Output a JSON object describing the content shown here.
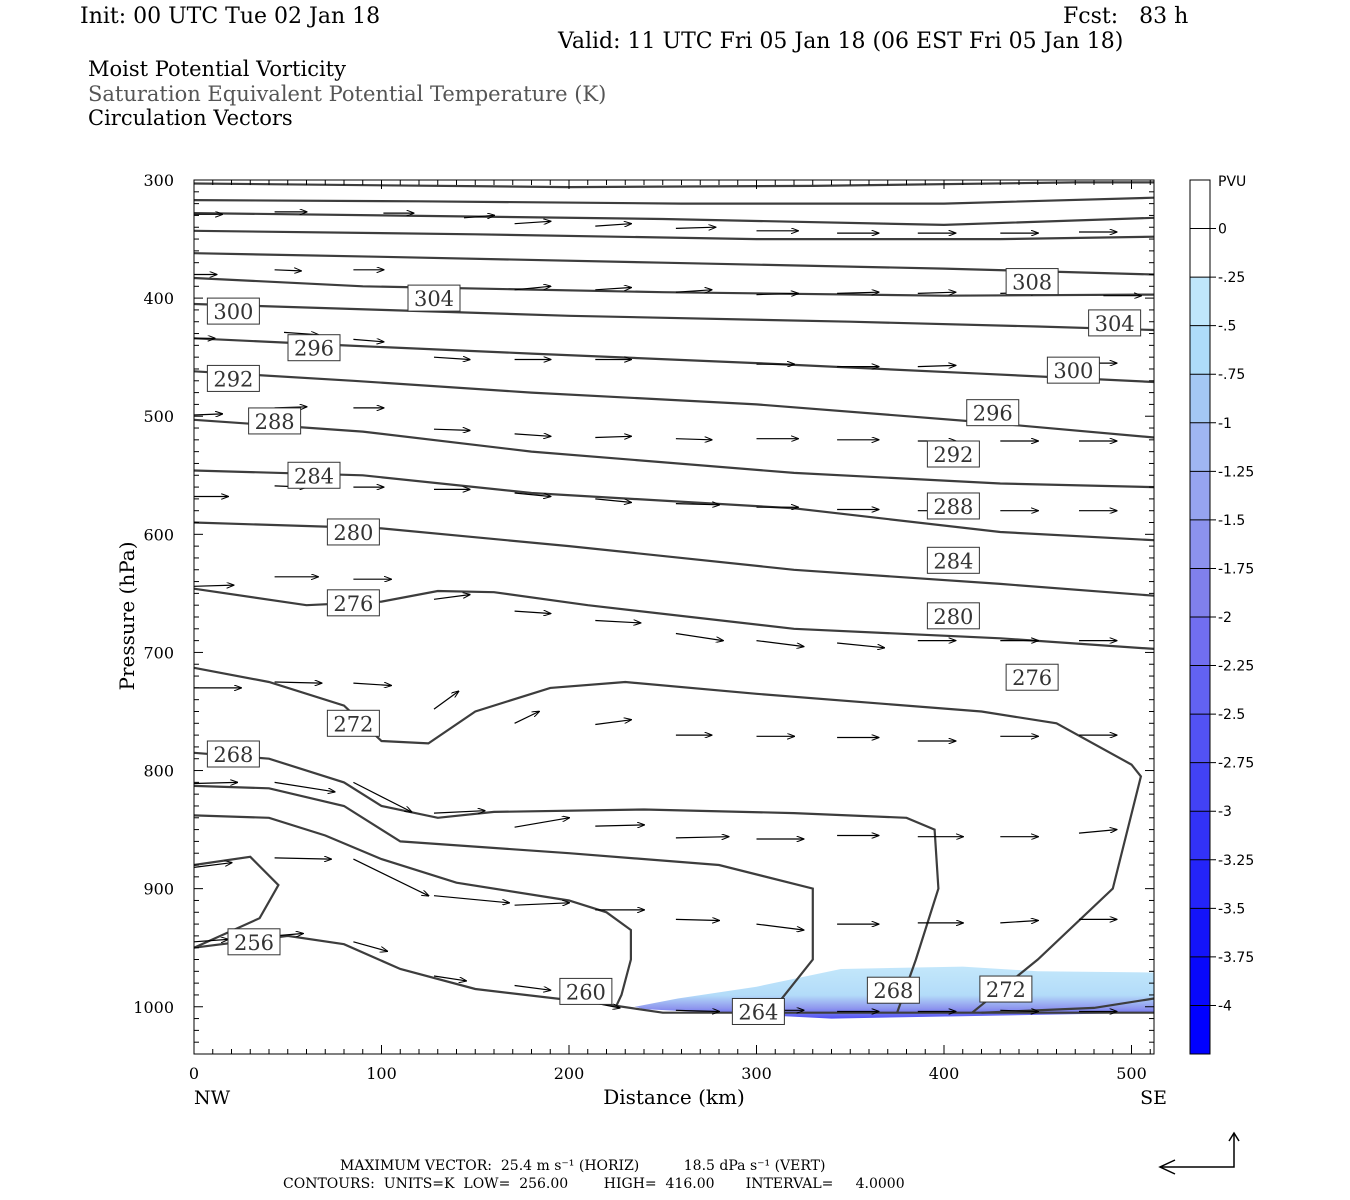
{
  "header": {
    "init": "Init: 00 UTC Tue 02 Jan 18",
    "fcst": "Fcst:   83 h",
    "valid": "Valid: 11 UTC Fri 05 Jan 18 (06 EST Fri 05 Jan 18)"
  },
  "titles": {
    "line1": "Moist Potential Vorticity",
    "line2": "Saturation Equivalent Potential Temperature (K)",
    "line3": "Circulation Vectors"
  },
  "chart_data": {
    "type": "contour",
    "xlabel": "Distance (km)",
    "ylabel": "Pressure (hPa)",
    "x_left_label": "NW",
    "x_right_label": "SE",
    "xlim": [
      0,
      512
    ],
    "ylim": [
      1040,
      300
    ],
    "xticks": [
      "0",
      "100",
      "200",
      "300",
      "400",
      "500"
    ],
    "yticks": [
      "300",
      "400",
      "500",
      "600",
      "700",
      "800",
      "900",
      "1000"
    ],
    "contour_labels": [
      {
        "text": "308",
        "x": 447,
        "p": 386
      },
      {
        "text": "304",
        "x": 128,
        "p": 400
      },
      {
        "text": "304",
        "x": 491,
        "p": 421
      },
      {
        "text": "300",
        "x": 21,
        "p": 411
      },
      {
        "text": "300",
        "x": 469,
        "p": 461
      },
      {
        "text": "296",
        "x": 64,
        "p": 442
      },
      {
        "text": "296",
        "x": 426,
        "p": 497
      },
      {
        "text": "292",
        "x": 21,
        "p": 468
      },
      {
        "text": "292",
        "x": 405,
        "p": 532
      },
      {
        "text": "288",
        "x": 43,
        "p": 504
      },
      {
        "text": "288",
        "x": 405,
        "p": 576
      },
      {
        "text": "284",
        "x": 64,
        "p": 550
      },
      {
        "text": "284",
        "x": 405,
        "p": 622
      },
      {
        "text": "280",
        "x": 85,
        "p": 598
      },
      {
        "text": "280",
        "x": 405,
        "p": 669
      },
      {
        "text": "276",
        "x": 85,
        "p": 658
      },
      {
        "text": "276",
        "x": 447,
        "p": 721
      },
      {
        "text": "272",
        "x": 85,
        "p": 760
      },
      {
        "text": "268",
        "x": 21,
        "p": 786
      },
      {
        "text": "256",
        "x": 32,
        "p": 945
      },
      {
        "text": "260",
        "x": 209,
        "p": 987
      },
      {
        "text": "264",
        "x": 301,
        "p": 1004
      },
      {
        "text": "268",
        "x": 373,
        "p": 986
      },
      {
        "text": "272",
        "x": 433,
        "p": 985
      }
    ],
    "colorbar": {
      "title": "PVU",
      "levels": [
        "0",
        "-.25",
        "-.5",
        "-.75",
        "-1",
        "-1.25",
        "-1.5",
        "-1.75",
        "-2",
        "-2.25",
        "-2.5",
        "-2.75",
        "-3",
        "-3.25",
        "-3.5",
        "-3.75",
        "-4"
      ],
      "colors": [
        "#ffffff",
        "#ffffff",
        "#bfe6fb",
        "#aedcf9",
        "#a4c8f4",
        "#9fb6f2",
        "#96a4f0",
        "#8c92ee",
        "#8080ec",
        "#716ef0",
        "#6262f2",
        "#5252f4",
        "#4242f5",
        "#3232f7",
        "#2424f8",
        "#1414fa",
        "#0808fc",
        "#0000ff"
      ]
    }
  },
  "footer": {
    "max_vector": "MAXIMUM VECTOR:  25.4 m s⁻¹ (HORIZ)          18.5 dPa s⁻¹ (VERT)",
    "contours": "CONTOURS:  UNITS=K  LOW=  256.00        HIGH=  416.00       INTERVAL=     4.0000"
  }
}
